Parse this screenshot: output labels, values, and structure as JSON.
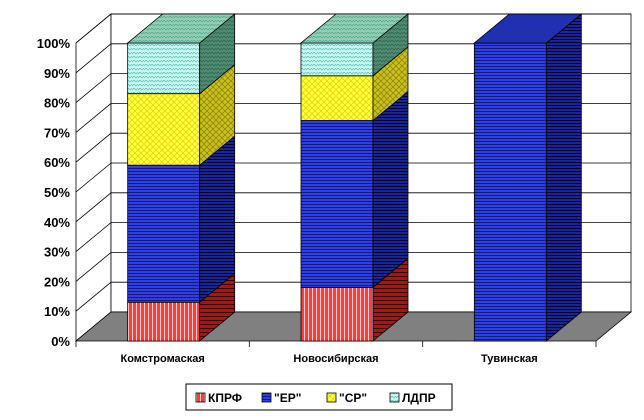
{
  "chart_data": {
    "type": "bar",
    "stacked": true,
    "three_d": true,
    "categories": [
      "Комстромаская",
      "Новосибирская",
      "Тувинская"
    ],
    "series": [
      {
        "name": "КПРФ",
        "values": [
          13,
          18,
          0
        ],
        "color": "#ff3b3b"
      },
      {
        "name": "\"ЕР\"",
        "values": [
          46,
          56,
          100
        ],
        "color": "#3344dd"
      },
      {
        "name": "\"СР\"",
        "values": [
          24,
          15,
          0
        ],
        "color": "#ffff44"
      },
      {
        "name": "ЛДПР",
        "values": [
          17,
          11,
          0
        ],
        "color": "#c8f5e8"
      }
    ],
    "y_ticks": [
      "0%",
      "10%",
      "20%",
      "30%",
      "40%",
      "50%",
      "60%",
      "70%",
      "80%",
      "90%",
      "100%"
    ],
    "ylim": [
      0,
      100
    ],
    "grid": true,
    "legend_position": "bottom"
  }
}
